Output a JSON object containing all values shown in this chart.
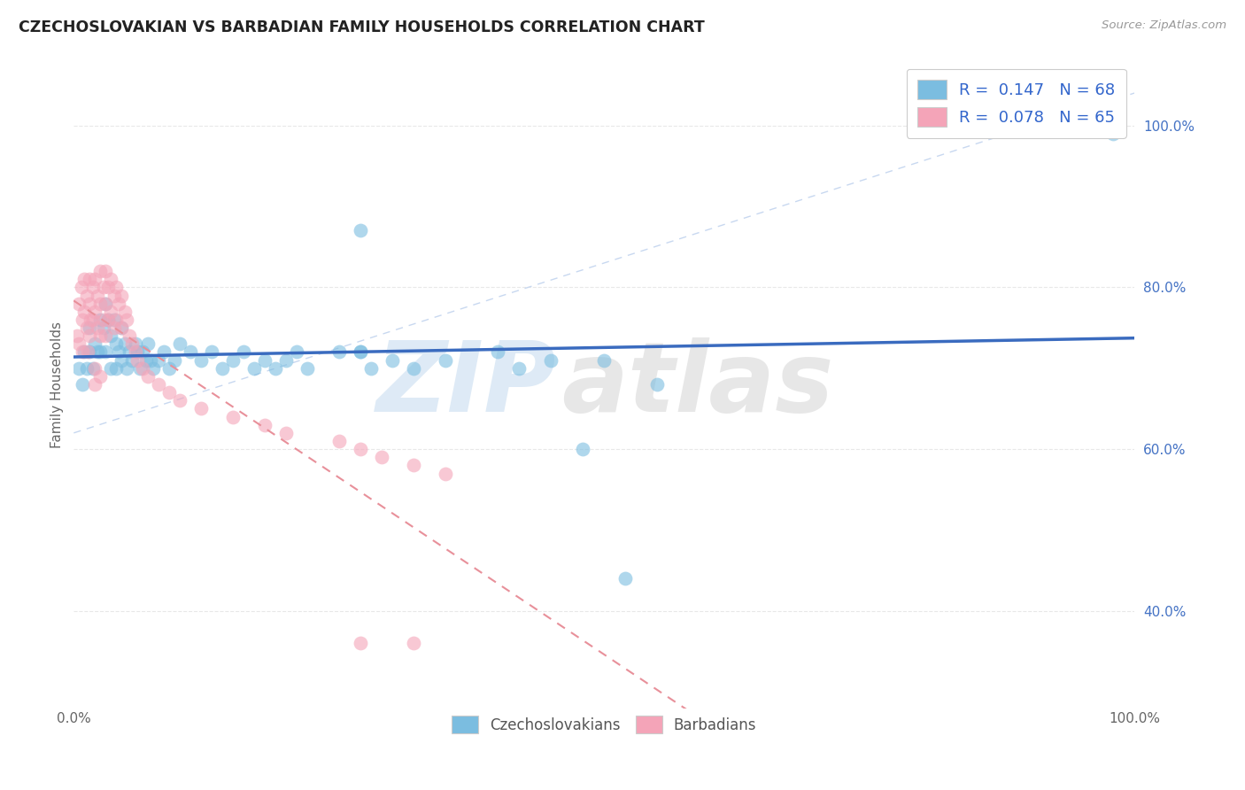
{
  "title": "CZECHOSLOVAKIAN VS BARBADIAN FAMILY HOUSEHOLDS CORRELATION CHART",
  "source": "Source: ZipAtlas.com",
  "ylabel": "Family Households",
  "legend_labels_bottom": [
    "Czechoslovakians",
    "Barbadians"
  ],
  "blue_color": "#7bbde0",
  "pink_color": "#f4a4b8",
  "blue_line_color": "#3a6bbf",
  "pink_line_color": "#e8909a",
  "dashed_guide_color": "#c8d8f0",
  "background_color": "#ffffff",
  "grid_color": "#e8e8e8",
  "blue_R": 0.147,
  "blue_N": 68,
  "pink_R": 0.078,
  "pink_N": 65,
  "xlim": [
    0.0,
    1.0
  ],
  "ylim": [
    0.28,
    1.08
  ],
  "yticks": [
    0.4,
    0.6,
    0.8,
    1.0
  ],
  "ytick_labels": [
    "40.0%",
    "60.0%",
    "80.0%",
    "100.0%"
  ],
  "xticks": [
    0.0,
    1.0
  ],
  "xtick_labels": [
    "0.0%",
    "100.0%"
  ],
  "blue_scatter_x": [
    0.005,
    0.008,
    0.01,
    0.012,
    0.015,
    0.015,
    0.018,
    0.02,
    0.022,
    0.025,
    0.025,
    0.028,
    0.03,
    0.03,
    0.032,
    0.035,
    0.035,
    0.038,
    0.04,
    0.04,
    0.042,
    0.045,
    0.045,
    0.048,
    0.05,
    0.052,
    0.055,
    0.058,
    0.06,
    0.062,
    0.065,
    0.068,
    0.07,
    0.072,
    0.075,
    0.08,
    0.085,
    0.09,
    0.095,
    0.1,
    0.11,
    0.12,
    0.13,
    0.14,
    0.15,
    0.16,
    0.17,
    0.18,
    0.19,
    0.2,
    0.21,
    0.22,
    0.25,
    0.27,
    0.28,
    0.3,
    0.32,
    0.35,
    0.4,
    0.42,
    0.45,
    0.48,
    0.5,
    0.52,
    0.55,
    0.27,
    0.98,
    0.27
  ],
  "blue_scatter_y": [
    0.7,
    0.68,
    0.72,
    0.7,
    0.75,
    0.72,
    0.7,
    0.73,
    0.72,
    0.76,
    0.72,
    0.75,
    0.78,
    0.72,
    0.76,
    0.74,
    0.7,
    0.76,
    0.73,
    0.7,
    0.72,
    0.75,
    0.71,
    0.73,
    0.7,
    0.72,
    0.71,
    0.73,
    0.72,
    0.7,
    0.72,
    0.71,
    0.73,
    0.71,
    0.7,
    0.71,
    0.72,
    0.7,
    0.71,
    0.73,
    0.72,
    0.71,
    0.72,
    0.7,
    0.71,
    0.72,
    0.7,
    0.71,
    0.7,
    0.71,
    0.72,
    0.7,
    0.72,
    0.72,
    0.7,
    0.71,
    0.7,
    0.71,
    0.72,
    0.7,
    0.71,
    0.6,
    0.71,
    0.44,
    0.68,
    0.87,
    0.99,
    0.72
  ],
  "pink_scatter_x": [
    0.003,
    0.005,
    0.005,
    0.007,
    0.008,
    0.008,
    0.01,
    0.01,
    0.012,
    0.012,
    0.013,
    0.015,
    0.015,
    0.015,
    0.016,
    0.018,
    0.018,
    0.02,
    0.02,
    0.022,
    0.022,
    0.025,
    0.025,
    0.025,
    0.028,
    0.028,
    0.03,
    0.03,
    0.03,
    0.032,
    0.032,
    0.035,
    0.035,
    0.038,
    0.038,
    0.04,
    0.04,
    0.042,
    0.045,
    0.045,
    0.048,
    0.05,
    0.052,
    0.055,
    0.058,
    0.06,
    0.065,
    0.07,
    0.08,
    0.09,
    0.1,
    0.12,
    0.15,
    0.18,
    0.2,
    0.25,
    0.27,
    0.29,
    0.32,
    0.35,
    0.02,
    0.02,
    0.025,
    0.27,
    0.32
  ],
  "pink_scatter_y": [
    0.74,
    0.78,
    0.73,
    0.8,
    0.76,
    0.72,
    0.81,
    0.77,
    0.79,
    0.75,
    0.72,
    0.81,
    0.78,
    0.74,
    0.76,
    0.8,
    0.76,
    0.81,
    0.77,
    0.79,
    0.75,
    0.82,
    0.78,
    0.74,
    0.8,
    0.76,
    0.82,
    0.78,
    0.74,
    0.8,
    0.76,
    0.81,
    0.77,
    0.79,
    0.75,
    0.8,
    0.76,
    0.78,
    0.79,
    0.75,
    0.77,
    0.76,
    0.74,
    0.73,
    0.72,
    0.71,
    0.7,
    0.69,
    0.68,
    0.67,
    0.66,
    0.65,
    0.64,
    0.63,
    0.62,
    0.61,
    0.6,
    0.59,
    0.58,
    0.57,
    0.7,
    0.68,
    0.69,
    0.36,
    0.36
  ]
}
